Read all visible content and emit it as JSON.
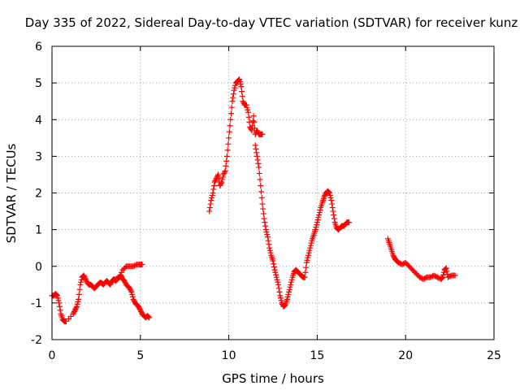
{
  "chart_data": {
    "type": "scatter",
    "title": "Day 335 of 2022, Sidereal Day-to-day VTEC variation (SDTVAR) for receiver kunz",
    "xlabel": "GPS time / hours",
    "ylabel": "SDTVAR / TECUs",
    "xlim": [
      0,
      25
    ],
    "ylim": [
      -2,
      6
    ],
    "xticks": [
      0,
      5,
      10,
      15,
      20,
      25
    ],
    "yticks": [
      -2,
      -1,
      0,
      1,
      2,
      3,
      4,
      5,
      6
    ],
    "grid": true,
    "marker": "+",
    "series_color": "#ff0000",
    "segments": [
      {
        "x": [
          0.0,
          0.1,
          0.2,
          0.3,
          0.4,
          0.5,
          0.6,
          0.7,
          0.8,
          1.2,
          1.3,
          1.4,
          1.5,
          1.6,
          1.7,
          1.8,
          1.9,
          2.0,
          2.1,
          2.2,
          2.3,
          2.4,
          2.5,
          2.6,
          2.7,
          2.8,
          2.9,
          3.0,
          3.1,
          3.2,
          3.3,
          3.4,
          3.5,
          3.6,
          3.7,
          3.8,
          3.9,
          4.0,
          4.1,
          4.2,
          4.3,
          4.4,
          4.5,
          4.6,
          4.7,
          4.8,
          4.9,
          5.0,
          5.1,
          5.2,
          5.3,
          5.4,
          5.5
        ],
        "y": [
          -0.8,
          -0.8,
          -0.75,
          -0.8,
          -1.0,
          -1.3,
          -1.45,
          -1.5,
          -1.5,
          -1.3,
          -1.2,
          -1.1,
          -0.9,
          -0.5,
          -0.3,
          -0.25,
          -0.35,
          -0.45,
          -0.5,
          -0.5,
          -0.55,
          -0.6,
          -0.55,
          -0.5,
          -0.45,
          -0.45,
          -0.5,
          -0.45,
          -0.4,
          -0.45,
          -0.5,
          -0.4,
          -0.35,
          -0.4,
          -0.35,
          -0.3,
          -0.25,
          -0.35,
          -0.4,
          -0.5,
          -0.55,
          -0.6,
          -0.7,
          -0.9,
          -1.0,
          -1.05,
          -1.1,
          -1.2,
          -1.3,
          -1.35,
          -1.4,
          -1.35,
          -1.4
        ]
      },
      {
        "x": [
          3.6,
          3.8,
          4.0,
          4.2,
          4.4,
          4.6,
          4.8,
          5.0,
          5.1
        ],
        "y": [
          -0.35,
          -0.3,
          -0.1,
          0.0,
          0.0,
          0.0,
          0.05,
          0.05,
          0.05
        ]
      },
      {
        "x": [
          8.9,
          9.0,
          9.1,
          9.2,
          9.3,
          9.4,
          9.5,
          9.6,
          9.7,
          9.8,
          9.9,
          10.0,
          10.1,
          10.2,
          10.3,
          10.4,
          10.5,
          10.6,
          10.7,
          10.8,
          10.9,
          11.0,
          11.1,
          11.2,
          11.3,
          11.4,
          11.5,
          11.6,
          11.7,
          11.8,
          11.9
        ],
        "y": [
          1.5,
          1.8,
          2.0,
          2.3,
          2.4,
          2.5,
          2.2,
          2.3,
          2.5,
          2.6,
          3.0,
          3.5,
          4.0,
          4.5,
          4.8,
          5.0,
          5.05,
          5.1,
          4.9,
          4.5,
          4.4,
          4.4,
          4.2,
          3.8,
          3.7,
          4.1,
          3.6,
          3.7,
          3.6,
          3.6,
          3.6
        ]
      },
      {
        "x": [
          11.5,
          11.6,
          11.7,
          11.8,
          11.9,
          12.0,
          12.1,
          12.2,
          12.3,
          12.4,
          12.5,
          12.6,
          12.7,
          12.8,
          12.9,
          13.0,
          13.1,
          13.2,
          13.3,
          13.4,
          13.5,
          13.6,
          13.7,
          13.8,
          13.9,
          14.0,
          14.1,
          14.2,
          14.3,
          14.4,
          14.5,
          14.6,
          14.7,
          14.8,
          14.9,
          15.0,
          15.1,
          15.2,
          15.3,
          15.4,
          15.5,
          15.6,
          15.7,
          15.8,
          15.9,
          16.0,
          16.1,
          16.2,
          16.3,
          16.4,
          16.5,
          16.6,
          16.7,
          16.8
        ],
        "y": [
          3.3,
          3.0,
          2.7,
          2.2,
          1.7,
          1.3,
          1.0,
          0.8,
          0.5,
          0.3,
          0.15,
          -0.1,
          -0.3,
          -0.5,
          -0.8,
          -1.0,
          -1.1,
          -1.05,
          -0.9,
          -0.7,
          -0.5,
          -0.3,
          -0.15,
          -0.1,
          -0.15,
          -0.2,
          -0.25,
          -0.3,
          -0.3,
          0.1,
          0.3,
          0.5,
          0.7,
          0.85,
          1.0,
          1.2,
          1.4,
          1.6,
          1.75,
          1.9,
          2.0,
          2.05,
          2.0,
          1.8,
          1.5,
          1.2,
          1.05,
          1.0,
          1.05,
          1.1,
          1.1,
          1.15,
          1.2,
          1.2
        ]
      },
      {
        "x": [
          19.0,
          19.1,
          19.2,
          19.3,
          19.4,
          19.5,
          19.6,
          19.8,
          20.0,
          20.2,
          20.4,
          20.6,
          20.8,
          21.0,
          21.2,
          21.4,
          21.6,
          21.8,
          22.0,
          22.1,
          22.2,
          22.3,
          22.4,
          22.6,
          22.8
        ],
        "y": [
          0.75,
          0.6,
          0.45,
          0.3,
          0.2,
          0.15,
          0.1,
          0.05,
          0.1,
          0.0,
          -0.1,
          -0.2,
          -0.3,
          -0.35,
          -0.3,
          -0.3,
          -0.25,
          -0.3,
          -0.35,
          -0.3,
          -0.1,
          -0.05,
          -0.3,
          -0.25,
          -0.25
        ]
      }
    ]
  }
}
